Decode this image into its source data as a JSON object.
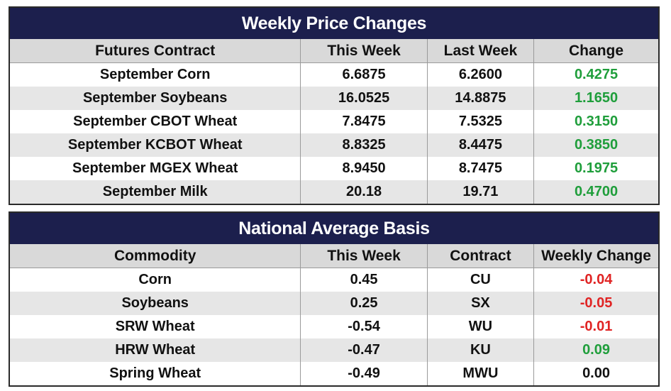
{
  "weekly": {
    "title": "Weekly Price Changes",
    "headers": [
      "Futures Contract",
      "This Week",
      "Last Week",
      "Change"
    ],
    "rows": [
      {
        "contract": "September Corn",
        "this_week": "6.6875",
        "last_week": "6.2600",
        "change": "0.4275"
      },
      {
        "contract": "September Soybeans",
        "this_week": "16.0525",
        "last_week": "14.8875",
        "change": "1.1650"
      },
      {
        "contract": "September CBOT Wheat",
        "this_week": "7.8475",
        "last_week": "7.5325",
        "change": "0.3150"
      },
      {
        "contract": "September KCBOT Wheat",
        "this_week": "8.8325",
        "last_week": "8.4475",
        "change": "0.3850"
      },
      {
        "contract": "September MGEX Wheat",
        "this_week": "8.9450",
        "last_week": "8.7475",
        "change": "0.1975"
      },
      {
        "contract": "September Milk",
        "this_week": "20.18",
        "last_week": "19.71",
        "change": "0.4700"
      }
    ]
  },
  "basis": {
    "title": "National Average Basis",
    "headers": [
      "Commodity",
      "This Week",
      "Contract",
      "Weekly Change"
    ],
    "rows": [
      {
        "commodity": "Corn",
        "this_week": "0.45",
        "contract": "CU",
        "change": "-0.04"
      },
      {
        "commodity": "Soybeans",
        "this_week": "0.25",
        "contract": "SX",
        "change": "-0.05"
      },
      {
        "commodity": "SRW Wheat",
        "this_week": "-0.54",
        "contract": "WU",
        "change": "-0.01"
      },
      {
        "commodity": "HRW Wheat",
        "this_week": "-0.47",
        "contract": "KU",
        "change": "0.09"
      },
      {
        "commodity": "Spring Wheat",
        "this_week": "-0.49",
        "contract": "MWU",
        "change": "0.00"
      }
    ]
  },
  "colors": {
    "title_bg": "#1c1f4d",
    "header_bg": "#d9d9d9",
    "alt_row_bg": "#e6e6e6",
    "positive": "#1f9e3b",
    "negative": "#e02424"
  }
}
